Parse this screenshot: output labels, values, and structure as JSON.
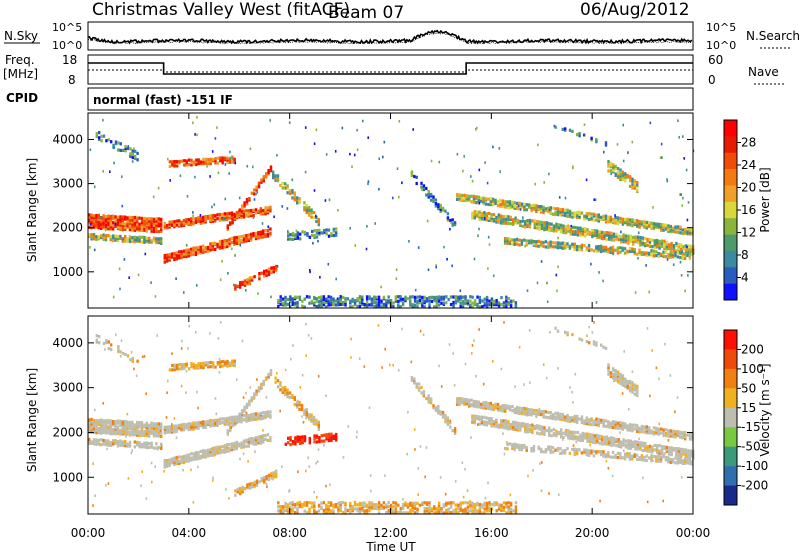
{
  "header": {
    "station": "Christmas Valley West (fitACF)",
    "beam": "Beam 07",
    "date": "06/Aug/2012"
  },
  "noise_panel": {
    "left_label": "N.Sky",
    "right_label": "N.Search",
    "y_ticks": [
      "10^5",
      "10^0"
    ]
  },
  "freq_panel": {
    "left_label": "Freq.",
    "left_unit": "[MHz]",
    "right_label": "Nave",
    "left_ticks": [
      "18",
      "8"
    ],
    "right_ticks": [
      "60",
      "0"
    ]
  },
  "cpid": {
    "label": "CPID",
    "mode": "normal (fast) -151 IF"
  },
  "x_axis": {
    "label": "Time UT",
    "ticks": [
      "00:00",
      "04:00",
      "08:00",
      "12:00",
      "16:00",
      "20:00",
      "00:00"
    ]
  },
  "chart_data": [
    {
      "type": "heatmap",
      "title": "",
      "xlabel": "Time UT",
      "ylabel": "Slant Range [km]",
      "x_ticks": [
        "00:00",
        "04:00",
        "08:00",
        "12:00",
        "16:00",
        "20:00",
        "00:00"
      ],
      "y_ticks": [
        1000,
        2000,
        3000,
        4000
      ],
      "xlim_hours": [
        0,
        24
      ],
      "ylim_km": [
        180,
        4600
      ],
      "colorbar": {
        "label": "Power [dB]",
        "ticks": [
          4,
          8,
          12,
          16,
          20,
          24,
          28
        ],
        "colors": [
          "#1010ff",
          "#2a5cbe",
          "#3c8aa0",
          "#4e9a6a",
          "#8ab53a",
          "#d8d83a",
          "#f0a028",
          "#f27a10",
          "#f04c08",
          "#e81a00",
          "#ff0000"
        ]
      }
    },
    {
      "type": "heatmap",
      "title": "",
      "xlabel": "Time UT",
      "ylabel": "Slant Range [km]",
      "x_ticks": [
        "00:00",
        "04:00",
        "08:00",
        "12:00",
        "16:00",
        "20:00",
        "00:00"
      ],
      "y_ticks": [
        1000,
        2000,
        3000,
        4000
      ],
      "xlim_hours": [
        0,
        24
      ],
      "ylim_km": [
        180,
        4600
      ],
      "colorbar": {
        "label": "Velocity [m s⁻¹]",
        "ticks": [
          "200",
          "100",
          "50",
          "15",
          "-15",
          "-50",
          "-100",
          "-200"
        ],
        "colors": [
          "#1a2a8a",
          "#2f6fb0",
          "#3a9a7a",
          "#78c840",
          "#bdbdb0",
          "#f0b020",
          "#f08010",
          "#f04a08",
          "#ff1000"
        ]
      }
    }
  ]
}
